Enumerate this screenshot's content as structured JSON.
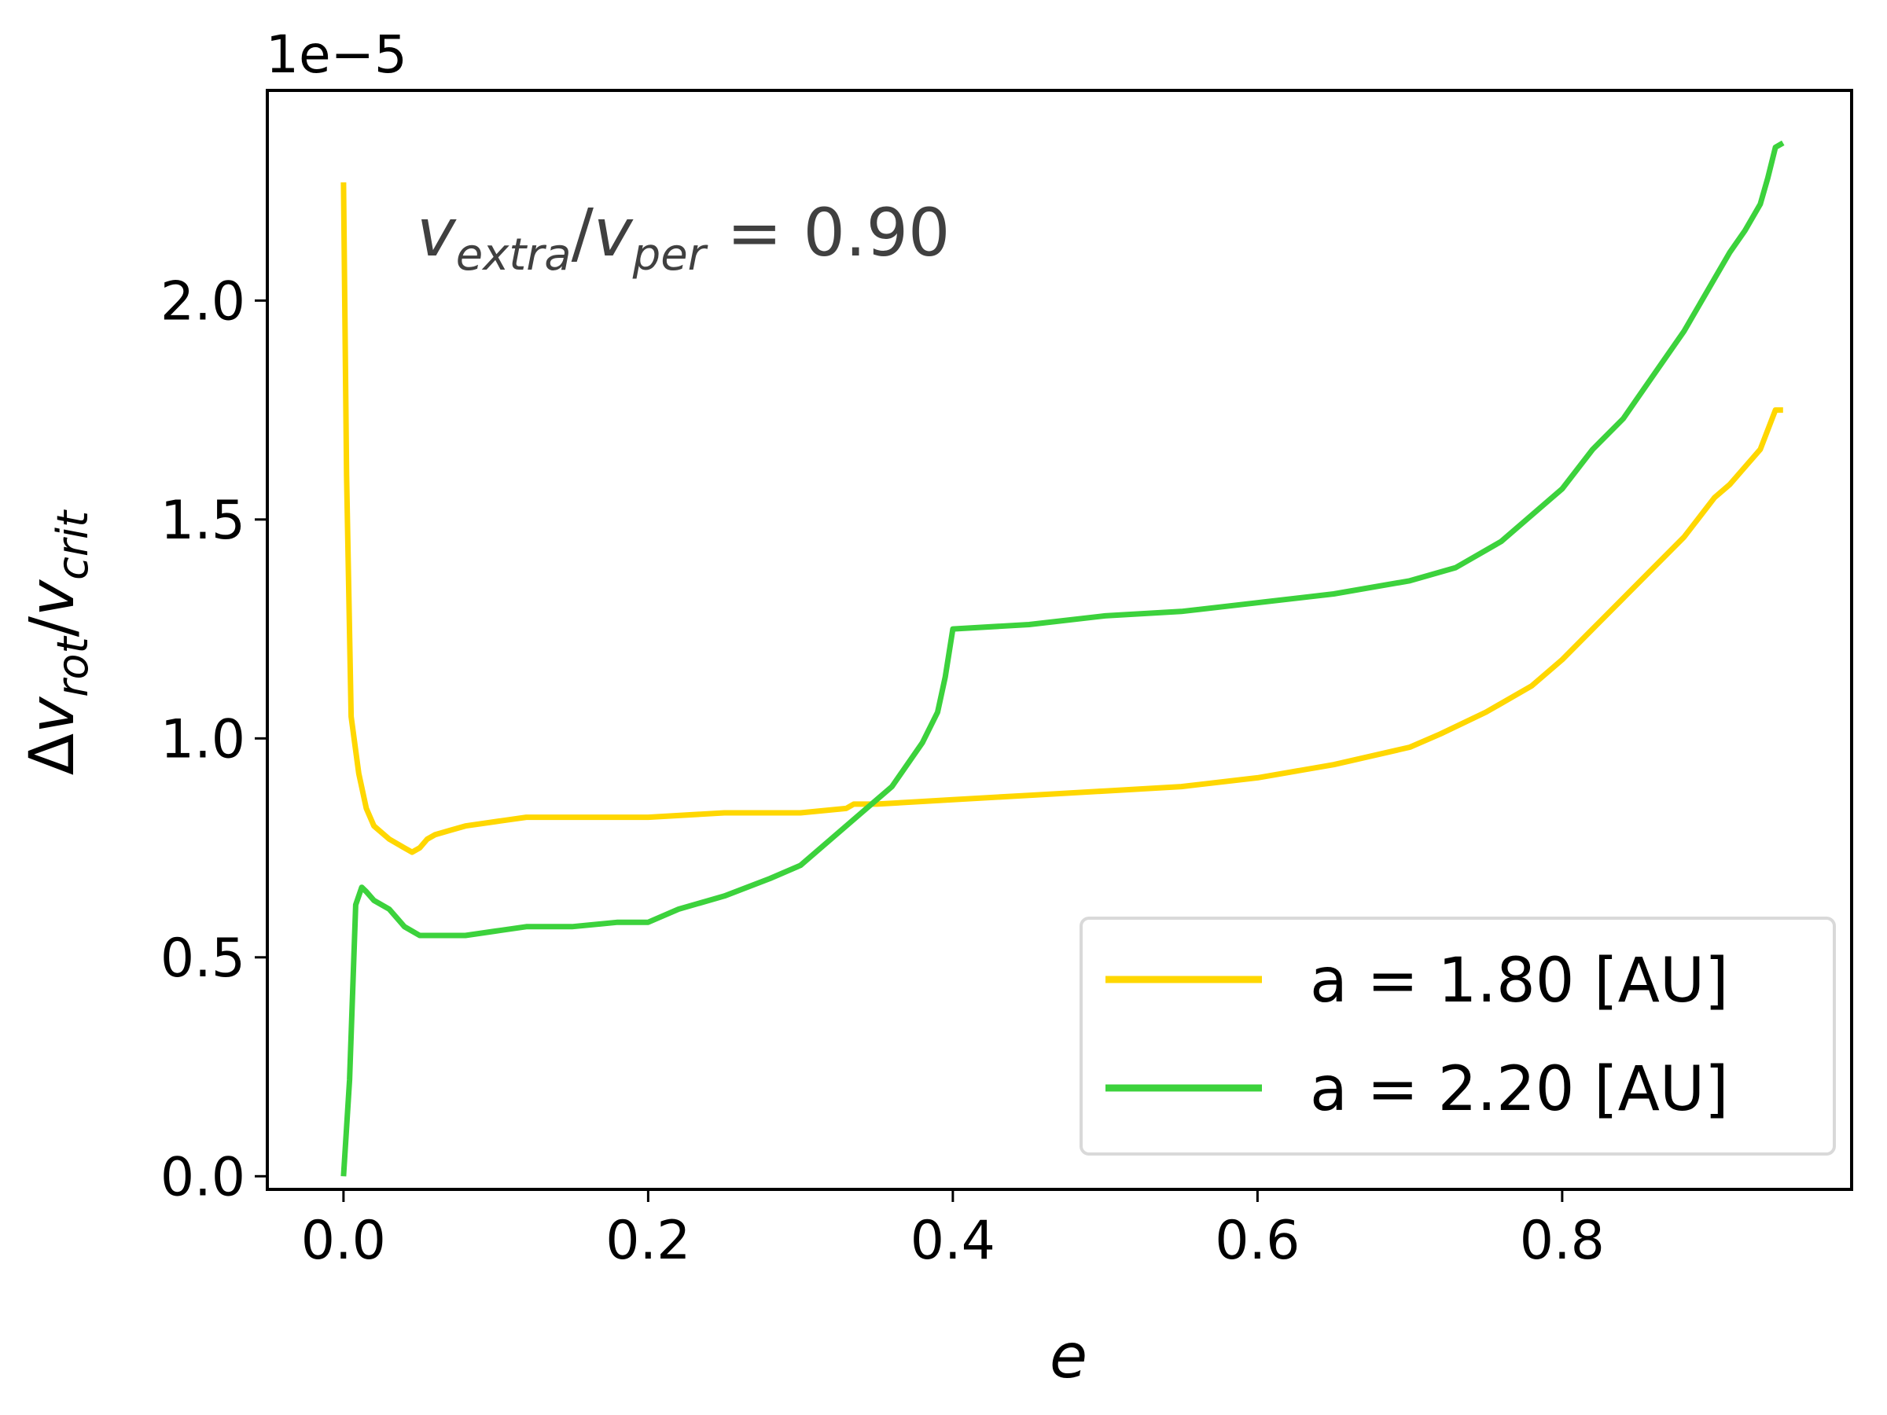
{
  "chart_data": {
    "type": "line",
    "xlabel": "e",
    "ylabel": {
      "delta": "Δ",
      "base1": "v",
      "sub1": "rot",
      "slash": "/",
      "base2": "v",
      "sub2": "crit"
    },
    "offset_label": "1e−5",
    "annotation": {
      "base1": "v",
      "sub1": "extra",
      "slash": "/",
      "base2": "v",
      "sub2": "per",
      "rest": " = 0.90"
    },
    "xlim": [
      -0.05,
      0.99
    ],
    "ylim": [
      -3e-07,
      2.48e-05
    ],
    "x_ticks": [
      0.0,
      0.2,
      0.4,
      0.6,
      0.8
    ],
    "x_tick_labels": [
      "0.0",
      "0.2",
      "0.4",
      "0.6",
      "0.8"
    ],
    "y_ticks": [
      0.0,
      5e-06,
      1e-05,
      1.5e-05,
      2e-05
    ],
    "y_tick_labels": [
      "0.0",
      "0.5",
      "1.0",
      "1.5",
      "2.0"
    ],
    "legend_position": "lower right",
    "series": [
      {
        "name": "a = 1.80 [AU]",
        "color": "#FFD700",
        "x": [
          0.0,
          0.002,
          0.005,
          0.01,
          0.015,
          0.02,
          0.03,
          0.04,
          0.045,
          0.05,
          0.055,
          0.06,
          0.07,
          0.08,
          0.1,
          0.12,
          0.15,
          0.2,
          0.25,
          0.3,
          0.33,
          0.335,
          0.35,
          0.4,
          0.45,
          0.5,
          0.55,
          0.6,
          0.65,
          0.7,
          0.72,
          0.75,
          0.78,
          0.8,
          0.82,
          0.84,
          0.86,
          0.88,
          0.9,
          0.91,
          0.92,
          0.93,
          0.94,
          0.945
        ],
        "y": [
          2.27e-05,
          1.6e-05,
          1.05e-05,
          9.2e-06,
          8.4e-06,
          8e-06,
          7.7e-06,
          7.5e-06,
          7.4e-06,
          7.5e-06,
          7.7e-06,
          7.8e-06,
          7.9e-06,
          8e-06,
          8.1e-06,
          8.2e-06,
          8.2e-06,
          8.2e-06,
          8.3e-06,
          8.3e-06,
          8.4e-06,
          8.5e-06,
          8.5e-06,
          8.6e-06,
          8.7e-06,
          8.8e-06,
          8.9e-06,
          9.1e-06,
          9.4e-06,
          9.8e-06,
          1.01e-05,
          1.06e-05,
          1.12e-05,
          1.18e-05,
          1.25e-05,
          1.32e-05,
          1.39e-05,
          1.46e-05,
          1.55e-05,
          1.58e-05,
          1.62e-05,
          1.66e-05,
          1.75e-05,
          1.75e-05
        ]
      },
      {
        "name": "a = 2.20 [AU]",
        "color": "#3CD23C",
        "x": [
          0.0,
          0.004,
          0.008,
          0.012,
          0.015,
          0.02,
          0.03,
          0.04,
          0.05,
          0.06,
          0.08,
          0.1,
          0.12,
          0.15,
          0.18,
          0.2,
          0.22,
          0.25,
          0.28,
          0.3,
          0.32,
          0.34,
          0.36,
          0.38,
          0.39,
          0.395,
          0.4,
          0.45,
          0.5,
          0.55,
          0.6,
          0.65,
          0.7,
          0.73,
          0.76,
          0.8,
          0.82,
          0.84,
          0.86,
          0.88,
          0.9,
          0.91,
          0.92,
          0.93,
          0.935,
          0.94,
          0.945
        ],
        "y": [
          0.0,
          2.2e-06,
          6.2e-06,
          6.6e-06,
          6.5e-06,
          6.3e-06,
          6.1e-06,
          5.7e-06,
          5.5e-06,
          5.5e-06,
          5.5e-06,
          5.6e-06,
          5.7e-06,
          5.7e-06,
          5.8e-06,
          5.8e-06,
          6.1e-06,
          6.4e-06,
          6.8e-06,
          7.1e-06,
          7.7e-06,
          8.3e-06,
          8.9e-06,
          9.9e-06,
          1.06e-05,
          1.14e-05,
          1.25e-05,
          1.26e-05,
          1.28e-05,
          1.29e-05,
          1.31e-05,
          1.33e-05,
          1.36e-05,
          1.39e-05,
          1.45e-05,
          1.57e-05,
          1.66e-05,
          1.73e-05,
          1.83e-05,
          1.93e-05,
          2.05e-05,
          2.11e-05,
          2.16e-05,
          2.22e-05,
          2.28e-05,
          2.35e-05,
          2.36e-05
        ]
      }
    ]
  }
}
